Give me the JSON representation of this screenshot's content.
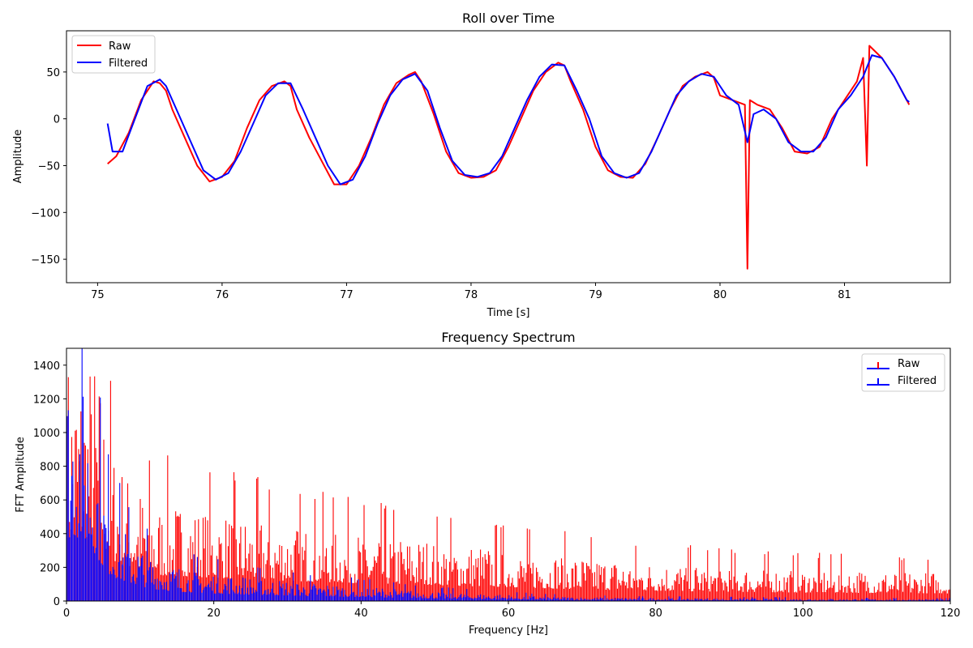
{
  "colors": {
    "raw": "#ff0000",
    "filtered": "#0000ff"
  },
  "chart_data": [
    {
      "type": "line",
      "title": "Roll over Time",
      "xlabel": "Time [s]",
      "ylabel": "Amplitude",
      "xlim": [
        74.75,
        81.85
      ],
      "ylim": [
        -175,
        94
      ],
      "xticks": [
        75,
        76,
        77,
        78,
        79,
        80,
        81
      ],
      "yticks": [
        -150,
        -100,
        -50,
        0,
        50
      ],
      "ytick_labels": [
        "−150",
        "−100",
        "−50",
        "0",
        "50"
      ],
      "legend": {
        "position": "top-left"
      },
      "x_range": [
        75.08,
        81.52
      ],
      "series": [
        {
          "name": "Raw",
          "color": "#ff0000",
          "points": [
            [
              75.08,
              -48
            ],
            [
              75.15,
              -40
            ],
            [
              75.25,
              -15
            ],
            [
              75.35,
              20
            ],
            [
              75.45,
              40
            ],
            [
              75.5,
              38
            ],
            [
              75.55,
              30
            ],
            [
              75.6,
              10
            ],
            [
              75.7,
              -20
            ],
            [
              75.8,
              -50
            ],
            [
              75.9,
              -67
            ],
            [
              76.0,
              -62
            ],
            [
              76.1,
              -45
            ],
            [
              76.2,
              -10
            ],
            [
              76.3,
              20
            ],
            [
              76.4,
              35
            ],
            [
              76.5,
              40
            ],
            [
              76.55,
              35
            ],
            [
              76.6,
              10
            ],
            [
              76.7,
              -20
            ],
            [
              76.8,
              -45
            ],
            [
              76.9,
              -70
            ],
            [
              77.0,
              -70
            ],
            [
              77.1,
              -50
            ],
            [
              77.2,
              -20
            ],
            [
              77.3,
              15
            ],
            [
              77.4,
              38
            ],
            [
              77.5,
              47
            ],
            [
              77.55,
              50
            ],
            [
              77.6,
              40
            ],
            [
              77.7,
              5
            ],
            [
              77.8,
              -35
            ],
            [
              77.9,
              -58
            ],
            [
              78.0,
              -63
            ],
            [
              78.1,
              -62
            ],
            [
              78.2,
              -55
            ],
            [
              78.3,
              -30
            ],
            [
              78.4,
              0
            ],
            [
              78.5,
              30
            ],
            [
              78.6,
              50
            ],
            [
              78.7,
              60
            ],
            [
              78.75,
              57
            ],
            [
              78.8,
              40
            ],
            [
              78.9,
              10
            ],
            [
              79.0,
              -30
            ],
            [
              79.1,
              -55
            ],
            [
              79.2,
              -62
            ],
            [
              79.3,
              -63
            ],
            [
              79.4,
              -48
            ],
            [
              79.5,
              -20
            ],
            [
              79.6,
              10
            ],
            [
              79.7,
              35
            ],
            [
              79.8,
              45
            ],
            [
              79.9,
              50
            ],
            [
              79.95,
              44
            ],
            [
              80.0,
              25
            ],
            [
              80.1,
              20
            ],
            [
              80.2,
              15
            ],
            [
              80.22,
              -160
            ],
            [
              80.24,
              20
            ],
            [
              80.3,
              15
            ],
            [
              80.4,
              10
            ],
            [
              80.5,
              -10
            ],
            [
              80.6,
              -35
            ],
            [
              80.7,
              -37
            ],
            [
              80.8,
              -30
            ],
            [
              80.9,
              0
            ],
            [
              81.0,
              20
            ],
            [
              81.1,
              40
            ],
            [
              81.15,
              65
            ],
            [
              81.18,
              -50
            ],
            [
              81.2,
              78
            ],
            [
              81.3,
              65
            ],
            [
              81.4,
              45
            ],
            [
              81.5,
              20
            ],
            [
              81.52,
              15
            ]
          ]
        },
        {
          "name": "Filtered",
          "color": "#0000ff",
          "points": [
            [
              75.08,
              -5
            ],
            [
              75.12,
              -35
            ],
            [
              75.2,
              -35
            ],
            [
              75.3,
              0
            ],
            [
              75.4,
              35
            ],
            [
              75.5,
              42
            ],
            [
              75.55,
              35
            ],
            [
              75.65,
              5
            ],
            [
              75.75,
              -25
            ],
            [
              75.85,
              -55
            ],
            [
              75.95,
              -65
            ],
            [
              76.05,
              -58
            ],
            [
              76.15,
              -35
            ],
            [
              76.25,
              -5
            ],
            [
              76.35,
              25
            ],
            [
              76.45,
              38
            ],
            [
              76.55,
              38
            ],
            [
              76.65,
              10
            ],
            [
              76.75,
              -20
            ],
            [
              76.85,
              -50
            ],
            [
              76.95,
              -70
            ],
            [
              77.05,
              -65
            ],
            [
              77.15,
              -40
            ],
            [
              77.25,
              -5
            ],
            [
              77.35,
              25
            ],
            [
              77.45,
              42
            ],
            [
              77.55,
              48
            ],
            [
              77.65,
              30
            ],
            [
              77.75,
              -10
            ],
            [
              77.85,
              -45
            ],
            [
              77.95,
              -60
            ],
            [
              78.05,
              -62
            ],
            [
              78.15,
              -58
            ],
            [
              78.25,
              -40
            ],
            [
              78.35,
              -10
            ],
            [
              78.45,
              20
            ],
            [
              78.55,
              45
            ],
            [
              78.65,
              58
            ],
            [
              78.75,
              57
            ],
            [
              78.85,
              30
            ],
            [
              78.95,
              0
            ],
            [
              79.05,
              -40
            ],
            [
              79.15,
              -58
            ],
            [
              79.25,
              -63
            ],
            [
              79.35,
              -58
            ],
            [
              79.45,
              -35
            ],
            [
              79.55,
              -5
            ],
            [
              79.65,
              25
            ],
            [
              79.75,
              40
            ],
            [
              79.85,
              48
            ],
            [
              79.95,
              45
            ],
            [
              80.05,
              25
            ],
            [
              80.15,
              15
            ],
            [
              80.22,
              -25
            ],
            [
              80.27,
              5
            ],
            [
              80.35,
              10
            ],
            [
              80.45,
              0
            ],
            [
              80.55,
              -25
            ],
            [
              80.65,
              -35
            ],
            [
              80.75,
              -35
            ],
            [
              80.85,
              -20
            ],
            [
              80.95,
              10
            ],
            [
              81.05,
              25
            ],
            [
              81.15,
              45
            ],
            [
              81.18,
              55
            ],
            [
              81.22,
              68
            ],
            [
              81.3,
              65
            ],
            [
              81.4,
              45
            ],
            [
              81.5,
              20
            ],
            [
              81.52,
              18
            ]
          ]
        }
      ]
    },
    {
      "type": "bar",
      "title": "Frequency Spectrum",
      "xlabel": "Frequency [Hz]",
      "ylabel": "FFT Amplitude",
      "xlim": [
        0,
        120
      ],
      "ylim": [
        0,
        1500
      ],
      "xticks": [
        0,
        20,
        40,
        60,
        80,
        100,
        120
      ],
      "yticks": [
        0,
        200,
        400,
        600,
        800,
        1000,
        1200,
        1400
      ],
      "legend": {
        "position": "top-right"
      },
      "series": [
        {
          "name": "Raw",
          "color": "#ff0000",
          "envelope": [
            [
              0,
              1500
            ],
            [
              2,
              1500
            ],
            [
              4,
              1500
            ],
            [
              6,
              1000
            ],
            [
              8,
              800
            ],
            [
              10,
              700
            ],
            [
              12,
              600
            ],
            [
              15,
              600
            ],
            [
              20,
              550
            ],
            [
              25,
              520
            ],
            [
              30,
              480
            ],
            [
              35,
              450
            ],
            [
              40,
              420
            ],
            [
              45,
              400
            ],
            [
              50,
              380
            ],
            [
              55,
              350
            ],
            [
              60,
              330
            ],
            [
              65,
              300
            ],
            [
              70,
              280
            ],
            [
              75,
              260
            ],
            [
              80,
              240
            ],
            [
              85,
              230
            ],
            [
              90,
              220
            ],
            [
              95,
              210
            ],
            [
              100,
              200
            ],
            [
              110,
              190
            ],
            [
              120,
              180
            ]
          ]
        },
        {
          "name": "Filtered",
          "color": "#0000ff",
          "envelope": [
            [
              0,
              1500
            ],
            [
              2,
              1500
            ],
            [
              3,
              1300
            ],
            [
              4,
              1100
            ],
            [
              5,
              800
            ],
            [
              6,
              600
            ],
            [
              8,
              450
            ],
            [
              10,
              350
            ],
            [
              12,
              280
            ],
            [
              15,
              220
            ],
            [
              20,
              180
            ],
            [
              25,
              150
            ],
            [
              30,
              130
            ],
            [
              35,
              110
            ],
            [
              40,
              95
            ],
            [
              45,
              80
            ],
            [
              50,
              60
            ],
            [
              55,
              50
            ],
            [
              60,
              40
            ],
            [
              65,
              30
            ],
            [
              70,
              25
            ],
            [
              80,
              20
            ],
            [
              90,
              18
            ],
            [
              100,
              15
            ],
            [
              120,
              12
            ]
          ]
        }
      ]
    }
  ]
}
